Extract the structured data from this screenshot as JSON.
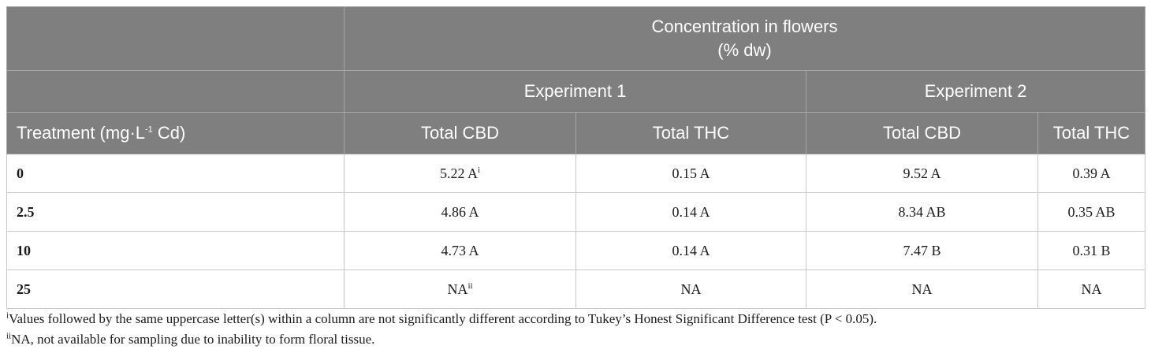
{
  "header": {
    "group_title_line1": "Concentration in flowers",
    "group_title_line2": "(% dw)",
    "experiment1": "Experiment 1",
    "experiment2": "Experiment 2",
    "treatment_prefix": "Treatment (mg·L",
    "treatment_exp": "-1",
    "treatment_suffix": " Cd)",
    "col_cbd_1": "Total CBD",
    "col_thc_1": "Total THC",
    "col_cbd_2": "Total CBD",
    "col_thc_2": "Total THC"
  },
  "rows": [
    {
      "treatment": "0",
      "e1_cbd": "5.22 A",
      "e1_cbd_sup": "i",
      "e1_thc": "0.15 A",
      "e2_cbd": "9.52 A",
      "e2_thc": "0.39 A"
    },
    {
      "treatment": "2.5",
      "e1_cbd": "4.86 A",
      "e1_thc": "0.14 A",
      "e2_cbd": "8.34 AB",
      "e2_thc": "0.35 AB"
    },
    {
      "treatment": "10",
      "e1_cbd": "4.73 A",
      "e1_thc": "0.14 A",
      "e2_cbd": "7.47 B",
      "e2_thc": "0.31 B"
    },
    {
      "treatment": "25",
      "e1_cbd": "NA",
      "e1_cbd_sup": "ii",
      "e1_thc": "NA",
      "e2_cbd": "NA",
      "e2_thc": "NA"
    }
  ],
  "footnotes": [
    {
      "mark": "i",
      "text": "Values followed by the same uppercase letter(s) within a column are not significantly different according to Tukey’s Honest Significant Difference test (P < 0.05)."
    },
    {
      "mark": "ii",
      "text": "NA, not available for sampling due to inability to form floral tissue."
    }
  ]
}
